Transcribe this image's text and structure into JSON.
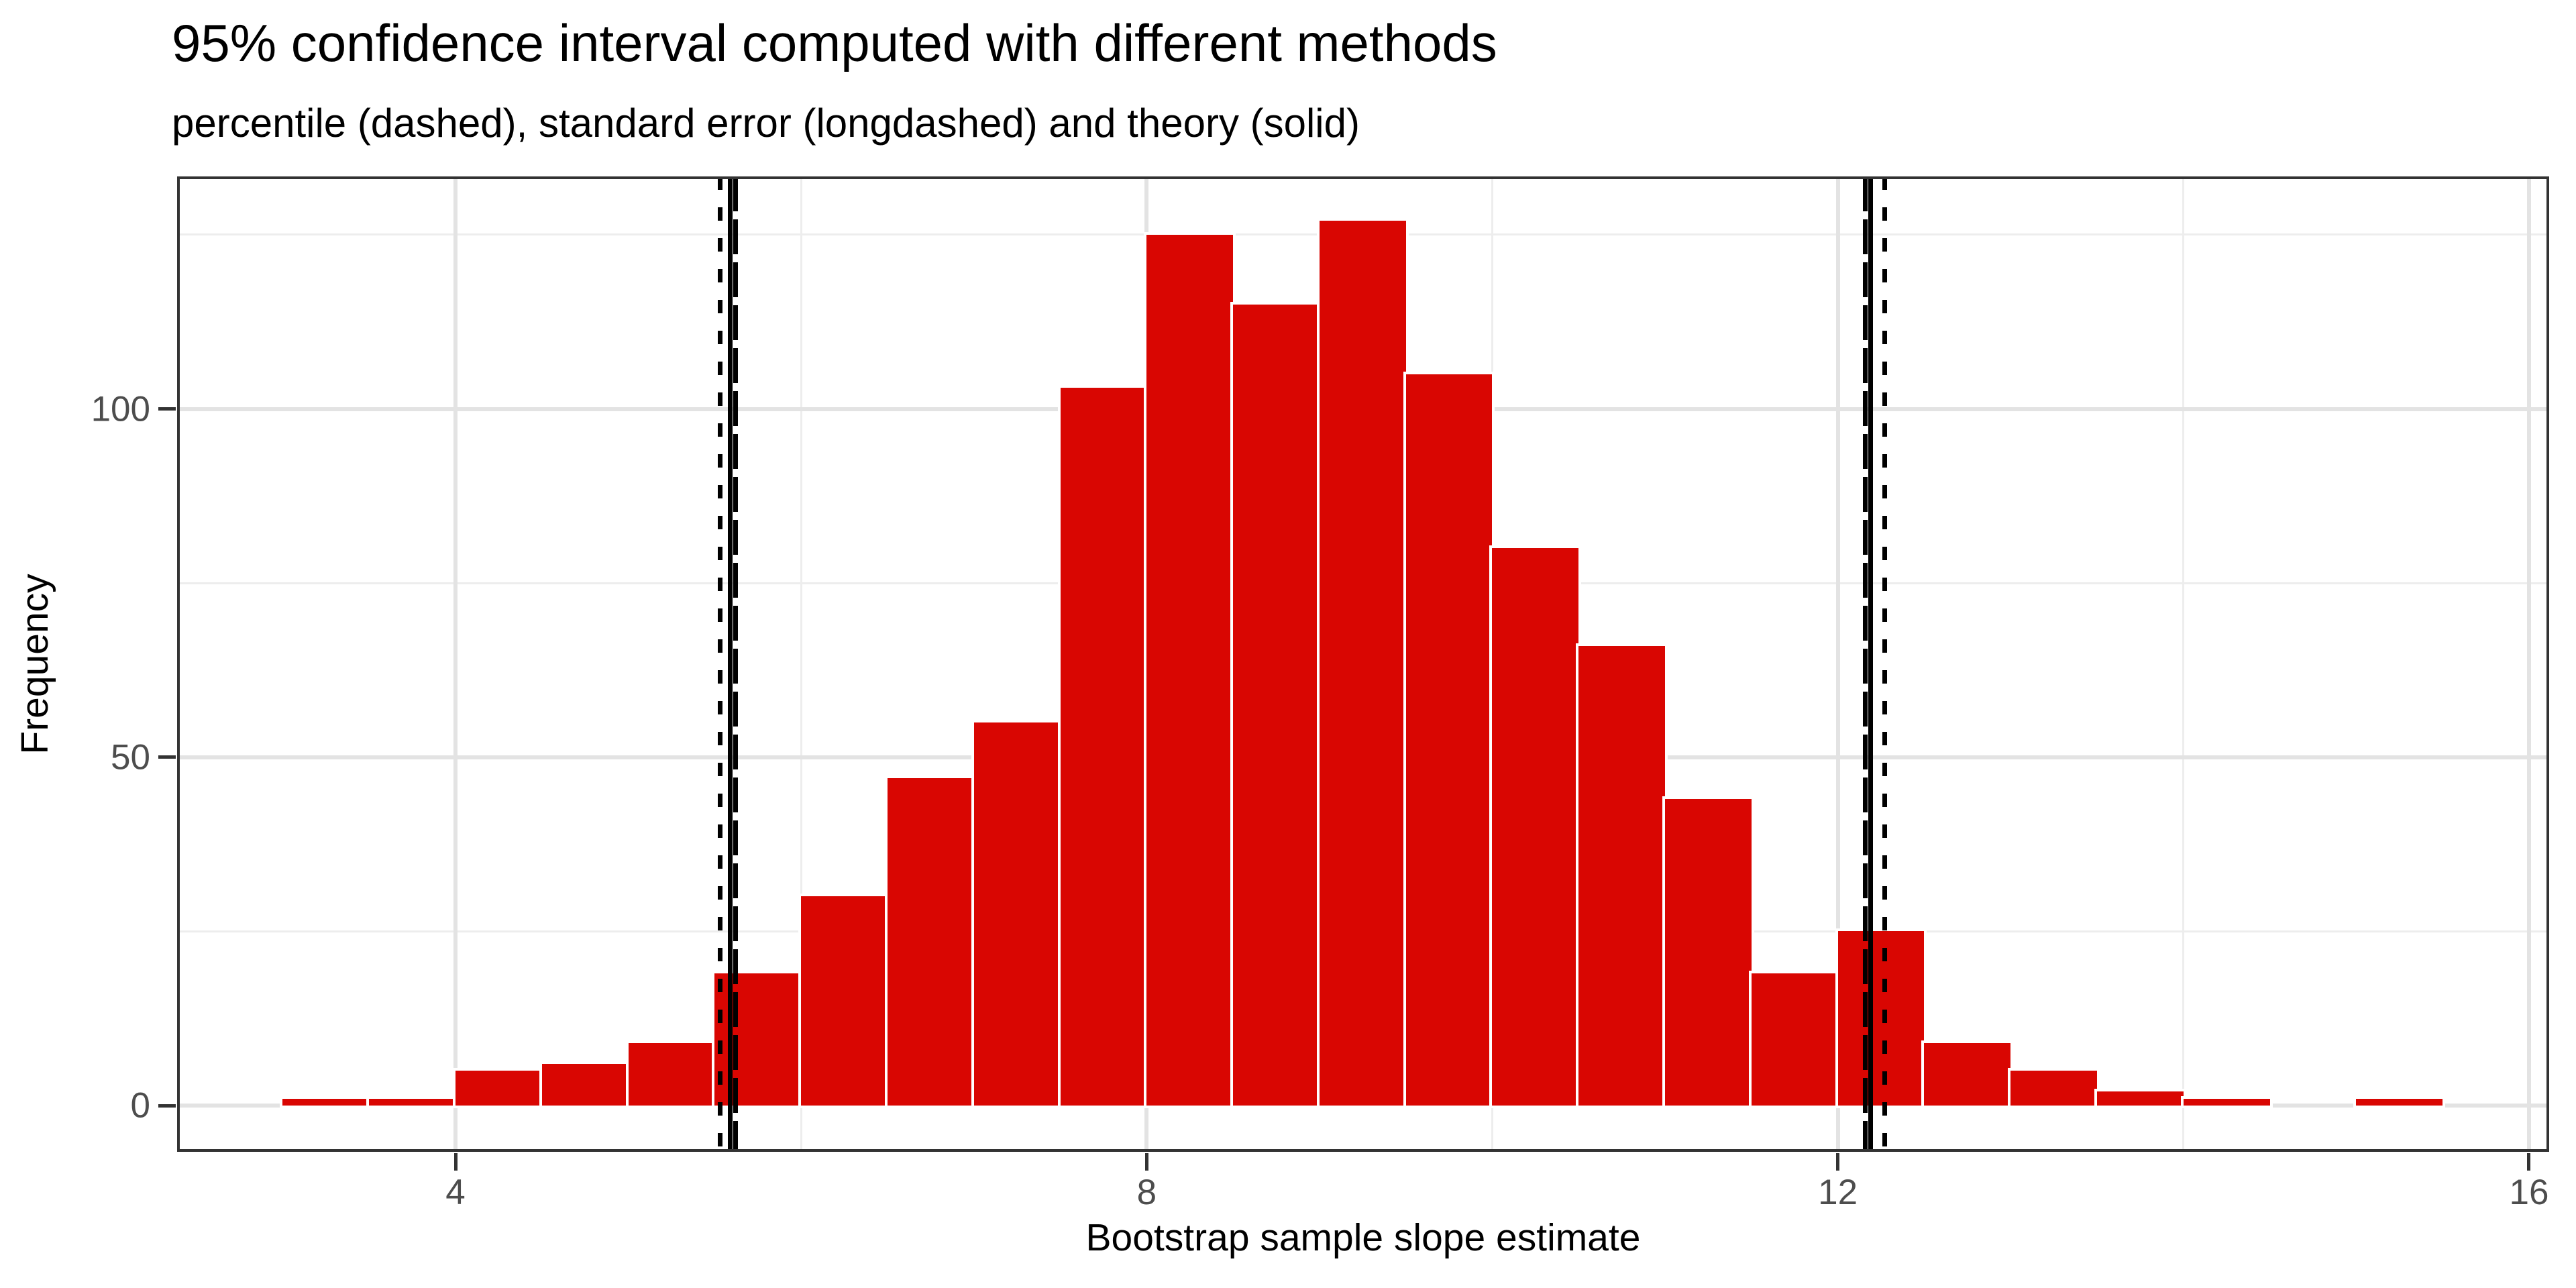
{
  "header": {
    "title": "95% confidence interval computed with different methods",
    "subtitle": "percentile (dashed), standard error (longdashed) and theory (solid)"
  },
  "chart_data": {
    "type": "bar",
    "subtype": "histogram",
    "title": "95% confidence interval computed with different methods",
    "subtitle": "percentile (dashed), standard error (longdashed) and theory (solid)",
    "xlabel": "Bootstrap sample slope estimate",
    "ylabel": "Frequency",
    "n_total": 1000,
    "bin_width": 0.5,
    "bin_edges": [
      3.0,
      3.5,
      4.0,
      4.5,
      5.0,
      5.5,
      6.0,
      6.5,
      7.0,
      7.5,
      8.0,
      8.5,
      9.0,
      9.5,
      10.0,
      10.5,
      11.0,
      11.5,
      12.0,
      12.5,
      13.0,
      13.5,
      14.0,
      14.5,
      15.0,
      15.5
    ],
    "counts": [
      1,
      1,
      5,
      6,
      9,
      19,
      30,
      47,
      55,
      103,
      125,
      115,
      127,
      105,
      80,
      66,
      44,
      19,
      25,
      9,
      5,
      2,
      1,
      0,
      1
    ],
    "x_ticks": [
      4,
      8,
      12,
      16
    ],
    "y_ticks": [
      0,
      50,
      100
    ],
    "x_minor_gridlines": [
      6,
      10,
      14
    ],
    "y_minor_gridlines": [
      25,
      75,
      125
    ],
    "xlim": [
      2.39,
      16.12
    ],
    "ylim": [
      -6.7,
      133.4
    ],
    "grid": true,
    "legend": false,
    "ci_lines": [
      {
        "method": "percentile",
        "style": "dashed",
        "bound": "lower",
        "x": 5.53
      },
      {
        "method": "percentile",
        "style": "dashed",
        "bound": "upper",
        "x": 12.27
      },
      {
        "method": "standard_error",
        "style": "longdashed",
        "bound": "lower",
        "x": 5.62
      },
      {
        "method": "standard_error",
        "style": "longdashed",
        "bound": "upper",
        "x": 12.16
      },
      {
        "method": "theory",
        "style": "solid",
        "bound": "lower",
        "x": 5.59
      },
      {
        "method": "theory",
        "style": "solid",
        "bound": "upper",
        "x": 12.19
      }
    ]
  },
  "style": {
    "bar_color": "#D90602",
    "bar_border_color": "#FFFFFF",
    "ci_line_color": "#000000",
    "grid_major_color": "#E3E3E3",
    "grid_minor_color": "#EDEDED",
    "panel_border_color": "#333333",
    "tick_color": "#333333",
    "tick_label_color": "#4D4D4D",
    "background": "#FFFFFF"
  }
}
